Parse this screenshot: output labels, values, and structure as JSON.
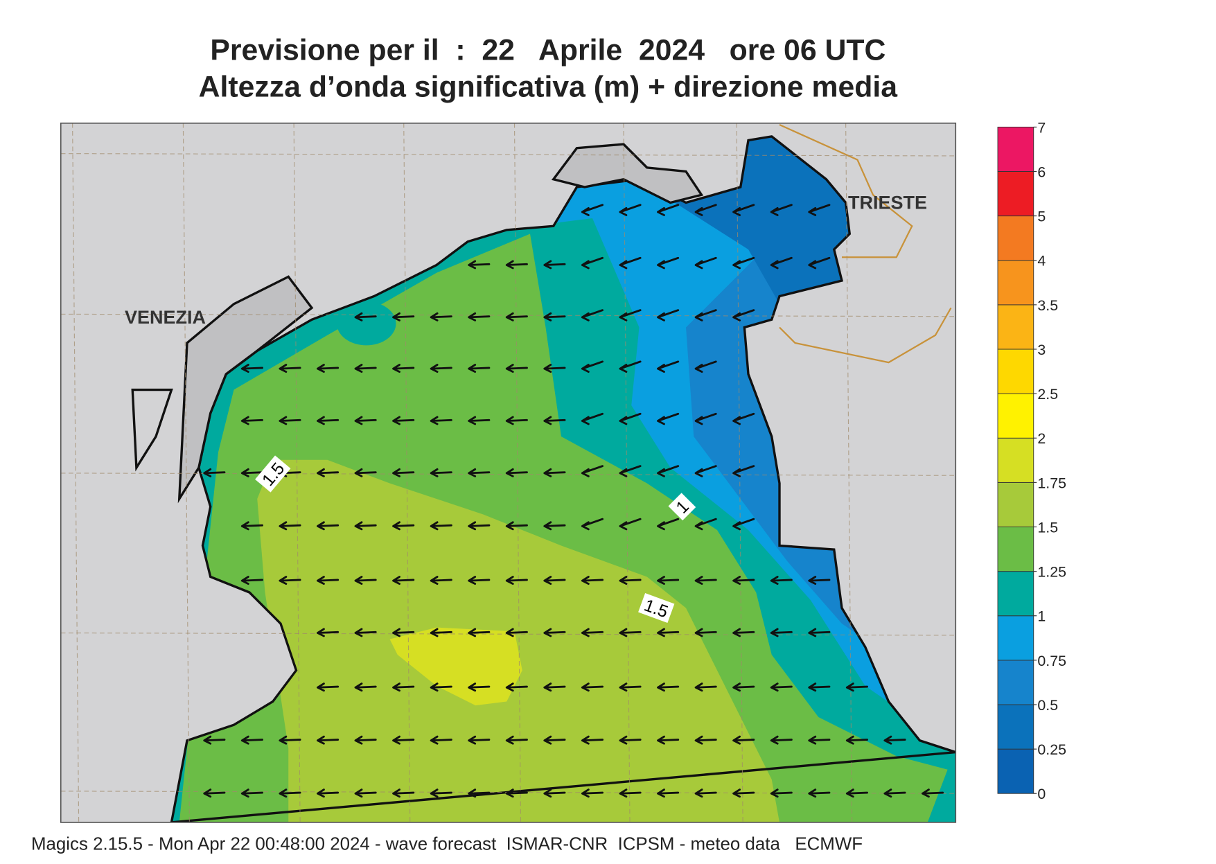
{
  "header": {
    "title_line1": "Previsione per il  :  22   Aprile  2024   ore 06 UTC",
    "title_line2": "Altezza d’onda significativa (m) + direzione media"
  },
  "map": {
    "place_labels": [
      "VENEZIA",
      "TRIESTE"
    ],
    "contour_labels": [
      "1.5",
      "1",
      "1.5"
    ]
  },
  "colorbar": {
    "ticks": [
      0,
      0.25,
      0.5,
      0.75,
      1,
      1.25,
      1.5,
      1.75,
      2,
      2.5,
      3,
      3.5,
      4,
      5,
      6,
      7
    ],
    "colors": [
      "#0a62b2",
      "#0b72bb",
      "#1684cc",
      "#0a9fe0",
      "#00aa9e",
      "#6bbd46",
      "#a7ca3a",
      "#d6df23",
      "#fff200",
      "#fed800",
      "#fbb415",
      "#f7941d",
      "#f37a21",
      "#ed1c24",
      "#ec1763"
    ]
  },
  "footer": "Magics 2.15.5 - Mon Apr 22 00:48:00 2024 - wave forecast  ISMAR-CNR  ICPSM - meteo data   ECMWF"
}
